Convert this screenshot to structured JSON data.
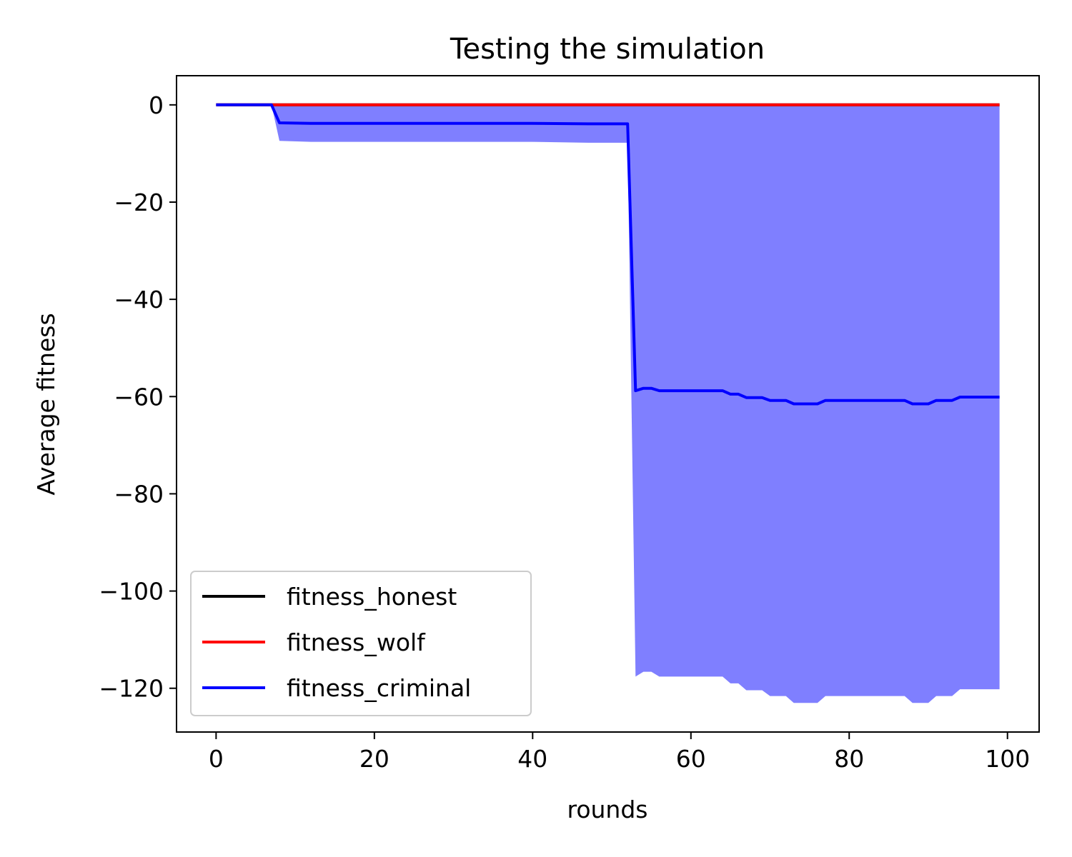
{
  "chart_data": {
    "type": "line",
    "title": "Testing the simulation",
    "xlabel": "rounds",
    "ylabel": "Average fitness",
    "xlim": [
      -5,
      104
    ],
    "ylim": [
      -129,
      6
    ],
    "xticks": [
      0,
      20,
      40,
      60,
      80,
      100
    ],
    "yticks": [
      0,
      -20,
      -40,
      -60,
      -80,
      -100,
      -120
    ],
    "xtick_labels": [
      "0",
      "20",
      "40",
      "60",
      "80",
      "100"
    ],
    "ytick_labels": [
      "0",
      "−20",
      "−40",
      "−60",
      "−80",
      "−100",
      "−120"
    ],
    "grid": false,
    "legend_position": "lower-left",
    "series": [
      {
        "name": "fitness_honest",
        "color": "#000000",
        "x": [
          0,
          7,
          99
        ],
        "y": [
          0,
          0,
          0
        ]
      },
      {
        "name": "fitness_wolf",
        "color": "#ff0000",
        "x": [
          0,
          7,
          8,
          99
        ],
        "y": [
          0,
          0,
          0,
          0
        ]
      },
      {
        "name": "fitness_criminal",
        "color": "#0000ff",
        "x": [
          0,
          7,
          8,
          12,
          40,
          47,
          52,
          53,
          54,
          55,
          56,
          64,
          65,
          66,
          67,
          69,
          70,
          72,
          73,
          76,
          77,
          87,
          88,
          90,
          91,
          93,
          94,
          99
        ],
        "y": [
          0,
          0,
          -3.7,
          -3.8,
          -3.8,
          -3.9,
          -3.9,
          -58.8,
          -58.3,
          -58.3,
          -58.8,
          -58.8,
          -59.5,
          -59.5,
          -60.2,
          -60.2,
          -60.8,
          -60.8,
          -61.5,
          -61.5,
          -60.8,
          -60.8,
          -61.5,
          -61.5,
          -60.8,
          -60.8,
          -60.1,
          -60.1
        ],
        "band": {
          "color": "#0000ff",
          "opacity": 0.5,
          "upper": 0,
          "x": [
            7,
            8,
            12,
            40,
            47,
            52,
            53,
            54,
            55,
            56,
            64,
            65,
            66,
            67,
            69,
            70,
            72,
            73,
            76,
            77,
            87,
            88,
            90,
            91,
            93,
            94,
            99
          ],
          "lower": [
            0,
            -7.4,
            -7.6,
            -7.6,
            -7.8,
            -7.8,
            -117.6,
            -116.6,
            -116.6,
            -117.6,
            -117.6,
            -119,
            -119,
            -120.4,
            -120.4,
            -121.6,
            -121.6,
            -123,
            -123,
            -121.6,
            -121.6,
            -123,
            -123,
            -121.6,
            -121.6,
            -120.2,
            -120.2
          ]
        }
      }
    ]
  }
}
